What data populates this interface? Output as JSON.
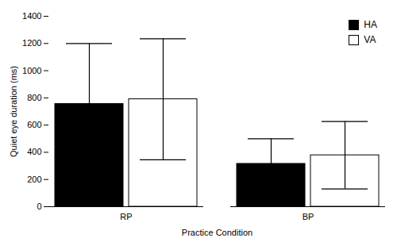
{
  "chart_data": {
    "type": "bar",
    "categories": [
      "RP",
      "BP"
    ],
    "series": [
      {
        "name": "HA",
        "color": "#000000",
        "values": [
          755,
          315
        ],
        "errors": [
          445,
          185
        ]
      },
      {
        "name": "VA",
        "color": "#ffffff",
        "values": [
          790,
          378
        ],
        "errors": [
          445,
          248
        ]
      }
    ],
    "xlabel": "Practice Condition",
    "ylabel": "Quiet eye duration (ms)",
    "ylim": [
      0,
      1400
    ],
    "yticks": [
      0,
      200,
      400,
      600,
      800,
      1000,
      1200,
      1400
    ],
    "legend": "upper right",
    "grid": false
  }
}
